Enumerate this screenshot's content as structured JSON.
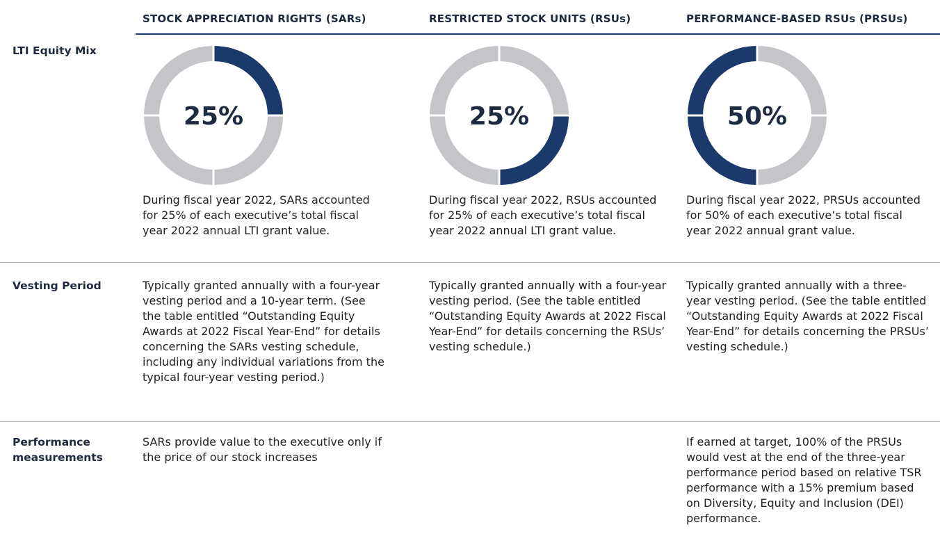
{
  "table": {
    "columns": [
      "STOCK APPRECIATION RIGHTS (SARs)",
      "RESTRICTED STOCK UNITS (RSUs)",
      "PERFORMANCE-BASED RSUs (PRSUs)"
    ],
    "rows": [
      {
        "label": "LTI Equity Mix",
        "mix": [
          {
            "value": 25,
            "label": "25%"
          },
          {
            "value": 25,
            "label": "25%"
          },
          {
            "value": 50,
            "label": "50%"
          }
        ],
        "cells": [
          "During fiscal year 2022, SARs accounted for 25% of each executive’s total fiscal year 2022 annual LTI grant value.",
          "During fiscal year 2022, RSUs accounted for 25% of each executive’s total fiscal year 2022 annual LTI grant value.",
          "During fiscal year 2022, PRSUs accounted for 50% of each executive’s total fiscal year 2022 annual grant value."
        ]
      },
      {
        "label": "Vesting Period",
        "cells": [
          "Typically granted annually with a four-year vesting period and a 10-year term. (See the table entitled “Outstanding Equity Awards at 2022 Fiscal Year-End” for details concerning the SARs vesting schedule, including any individual variations from the typical four-year vesting period.)",
          "Typically granted annually with a four-year vesting period. (See the table entitled “Outstanding Equity Awards at 2022 Fiscal Year-End” for details concerning the RSUs’ vesting schedule.)",
          "Typically granted annually with a three-year vesting period. (See the table entitled “Outstanding Equity Awards at 2022 Fiscal Year-End” for details concerning the PRSUs’ vesting schedule.)"
        ]
      },
      {
        "label": "Performance measurements",
        "cells": [
          "SARs provide value to the executive only if the price of our stock increases",
          null,
          "If earned at target, 100% of the PRSUs would vest at the end of the three-year performance period based on relative TSR performance with a 15% premium based on Diversity, Equity and Inclusion (DEI) performance."
        ]
      }
    ]
  }
}
